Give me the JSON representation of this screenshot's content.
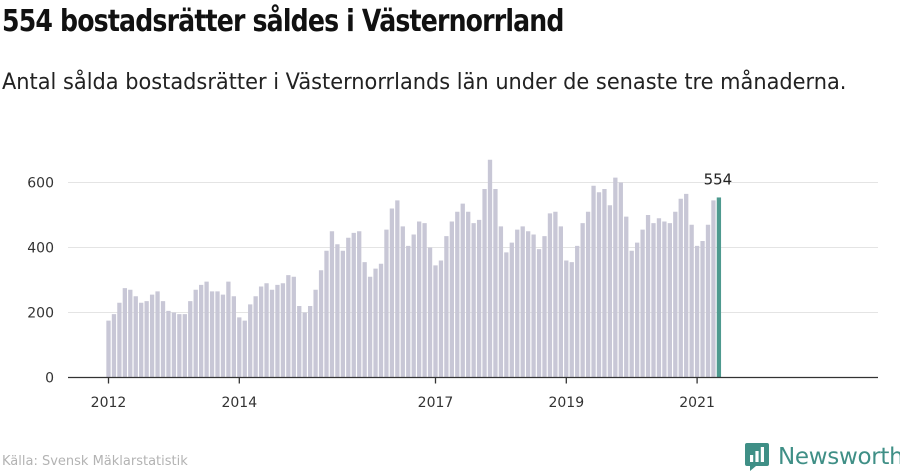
{
  "title": "554 bostadsrätter såldes i Västernorrland",
  "subtitle": "Antal sålda bostadsrätter i Västernorrlands län under de senaste tre månaderna.",
  "source": "Källa: Svensk Mäklarstatistik",
  "brand": {
    "name": "Newsworthy",
    "logo_icon": "newsworthy-logo-icon",
    "color": "#3f8f86"
  },
  "chart_data": {
    "type": "bar",
    "x_start": "2012-01",
    "x_end": "2021-04",
    "x_tick_labels": [
      "2012",
      "2014",
      "2017",
      "2019",
      "2021"
    ],
    "y_ticks": [
      0,
      200,
      400,
      600
    ],
    "ylim": [
      0,
      700
    ],
    "grid": true,
    "bar_color": "#c8c7d6",
    "highlight_color": "#4e9a8f",
    "highlight_label": "554",
    "values": [
      175,
      195,
      230,
      275,
      270,
      250,
      230,
      235,
      255,
      265,
      235,
      205,
      200,
      195,
      195,
      235,
      270,
      285,
      295,
      265,
      265,
      255,
      295,
      250,
      185,
      175,
      225,
      250,
      280,
      290,
      270,
      285,
      290,
      315,
      310,
      220,
      200,
      220,
      270,
      330,
      390,
      450,
      410,
      390,
      430,
      445,
      450,
      355,
      310,
      335,
      350,
      455,
      520,
      545,
      465,
      405,
      440,
      480,
      475,
      400,
      345,
      360,
      435,
      480,
      510,
      535,
      510,
      475,
      485,
      580,
      670,
      580,
      465,
      385,
      415,
      455,
      465,
      450,
      440,
      395,
      435,
      505,
      510,
      465,
      360,
      355,
      405,
      475,
      510,
      590,
      570,
      580,
      530,
      615,
      600,
      495,
      390,
      415,
      455,
      500,
      475,
      490,
      480,
      475,
      510,
      550,
      565,
      470,
      405,
      420,
      470,
      545,
      554
    ]
  }
}
